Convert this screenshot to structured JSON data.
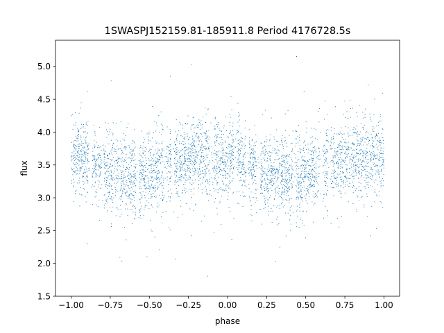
{
  "chart_data": {
    "type": "scatter",
    "title": "1SWASPJ152159.81-185911.8 Period 4176728.5s",
    "xlabel": "phase",
    "ylabel": "flux",
    "xlim": [
      -1.1,
      1.1
    ],
    "ylim": [
      1.5,
      5.4
    ],
    "xticks": [
      -1.0,
      -0.75,
      -0.5,
      -0.25,
      0.0,
      0.25,
      0.5,
      0.75,
      1.0
    ],
    "xtick_labels": [
      "−1.00",
      "−0.75",
      "−0.50",
      "−0.25",
      "0.00",
      "0.25",
      "0.50",
      "0.75",
      "1.00"
    ],
    "yticks": [
      1.5,
      2.0,
      2.5,
      3.0,
      3.5,
      4.0,
      4.5,
      5.0
    ],
    "ytick_labels": [
      "1.5",
      "2.0",
      "2.5",
      "3.0",
      "3.5",
      "4.0",
      "4.5",
      "5.0"
    ],
    "grid": false,
    "legend": "none",
    "marker_color": "#1f77b4",
    "curve": {
      "phase": [
        -1.0,
        -0.95,
        -0.9,
        -0.85,
        -0.8,
        -0.75,
        -0.7,
        -0.65,
        -0.6,
        -0.55,
        -0.5,
        -0.45,
        -0.4,
        -0.35,
        -0.3,
        -0.25,
        -0.2,
        -0.15,
        -0.1,
        -0.05,
        0.0,
        0.05,
        0.1,
        0.15,
        0.2,
        0.25,
        0.3,
        0.35,
        0.4,
        0.45,
        0.5,
        0.55,
        0.6,
        0.65,
        0.7,
        0.75,
        0.8,
        0.85,
        0.9,
        0.95,
        1.0
      ],
      "flux": [
        3.6,
        3.62,
        3.56,
        3.48,
        3.42,
        3.38,
        3.35,
        3.32,
        3.3,
        3.32,
        3.35,
        3.4,
        3.47,
        3.52,
        3.55,
        3.58,
        3.6,
        3.62,
        3.6,
        3.58,
        3.6,
        3.62,
        3.56,
        3.48,
        3.42,
        3.38,
        3.35,
        3.32,
        3.3,
        3.32,
        3.35,
        3.4,
        3.47,
        3.52,
        3.55,
        3.58,
        3.6,
        3.62,
        3.6,
        3.58,
        3.6
      ],
      "spread": 0.3,
      "gaps_phase": [
        -0.875,
        -0.8,
        -0.575,
        -0.4,
        -0.35,
        -0.1,
        0.05,
        0.125,
        0.2,
        0.425,
        0.6,
        0.65
      ]
    }
  }
}
